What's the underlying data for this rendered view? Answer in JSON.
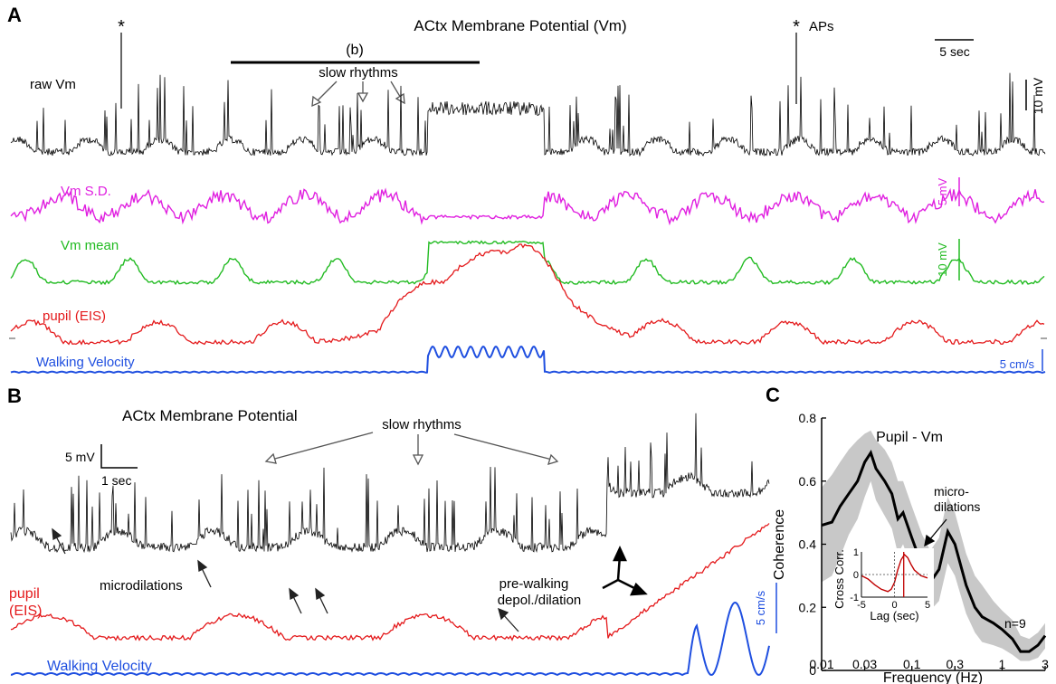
{
  "panels": {
    "a": {
      "letter": "A",
      "title": "ACtx Membrane Potential (Vm)",
      "bracket_label": "(b)",
      "slow_label": "slow rhythms",
      "ap_label": "APs",
      "ap_marker": "*",
      "trace_labels": {
        "raw": "raw Vm",
        "sd": "Vm S.D.",
        "mean": "Vm mean",
        "pupil": "pupil (EIS)",
        "walk": "Walking Velocity"
      },
      "scale_labels": {
        "time": "5 sec",
        "raw": "10 mV",
        "sd": "5 mV",
        "mean": "10 mV",
        "walk": "5 cm/s"
      }
    },
    "b": {
      "letter": "B",
      "title": "ACtx Membrane Potential",
      "slow_label": "slow rhythms",
      "micro_label": "microdilations",
      "pupil_label": [
        "pupil",
        "(EIS)"
      ],
      "walk_label": "Walking Velocity",
      "prewalk_label": [
        "pre-walking",
        "depol./dilation"
      ],
      "scale_labels": {
        "mv": "5 mV",
        "sec": "1 sec",
        "walk": "5 cm/s"
      }
    },
    "c": {
      "letter": "C"
    }
  },
  "colors": {
    "raw": "#000000",
    "sd": "#e020e0",
    "mean": "#22bb22",
    "pupil": "#e41a1c",
    "walk": "#1f4fe0",
    "band": "#c8c8c8"
  },
  "chart_data": {
    "type": "line",
    "title": "Pupil - Vm",
    "xlabel": "Frequency (Hz)",
    "ylabel": "Coherence",
    "x_scale": "log",
    "xlim": [
      0.01,
      3
    ],
    "ylim": [
      0,
      0.8
    ],
    "xticks": [
      0.01,
      0.03,
      0.1,
      0.3,
      1,
      3
    ],
    "xtick_labels": [
      "0.01",
      "0.03",
      "0.1",
      "0.3",
      "1",
      "3"
    ],
    "yticks": [
      0,
      0.2,
      0.4,
      0.6,
      0.8
    ],
    "ytick_labels": [
      "0",
      "0.2",
      "0.4",
      "0.6",
      "0.8"
    ],
    "annotation": [
      "micro-",
      "dilations"
    ],
    "n_label": "n=9",
    "series": [
      {
        "x": [
          0.01,
          0.013,
          0.016,
          0.02,
          0.025,
          0.03,
          0.035,
          0.04,
          0.05,
          0.06,
          0.07,
          0.08,
          0.1,
          0.13,
          0.16,
          0.2,
          0.25,
          0.3,
          0.4,
          0.5,
          0.6,
          0.8,
          1.0,
          1.3,
          1.6,
          2.0,
          2.5,
          3.0
        ],
        "values": [
          0.46,
          0.47,
          0.52,
          0.56,
          0.6,
          0.66,
          0.69,
          0.64,
          0.6,
          0.56,
          0.48,
          0.5,
          0.42,
          0.33,
          0.28,
          0.32,
          0.44,
          0.4,
          0.27,
          0.2,
          0.17,
          0.15,
          0.13,
          0.1,
          0.06,
          0.06,
          0.08,
          0.11
        ],
        "upper": [
          0.58,
          0.62,
          0.66,
          0.7,
          0.73,
          0.75,
          0.76,
          0.73,
          0.7,
          0.66,
          0.6,
          0.6,
          0.52,
          0.43,
          0.38,
          0.42,
          0.55,
          0.5,
          0.37,
          0.3,
          0.27,
          0.22,
          0.19,
          0.16,
          0.11,
          0.1,
          0.12,
          0.15
        ],
        "lower": [
          0.28,
          0.3,
          0.36,
          0.43,
          0.48,
          0.55,
          0.6,
          0.54,
          0.49,
          0.45,
          0.37,
          0.4,
          0.32,
          0.23,
          0.19,
          0.22,
          0.34,
          0.3,
          0.18,
          0.12,
          0.09,
          0.08,
          0.07,
          0.05,
          0.03,
          0.03,
          0.04,
          0.07
        ]
      }
    ],
    "inset": {
      "type": "line",
      "xlabel": "Lag (sec)",
      "ylabel": "Cross Corr.",
      "xlim": [
        -5,
        5
      ],
      "ylim": [
        -1,
        1
      ],
      "xticks": [
        -5,
        0,
        5
      ],
      "xtick_labels": [
        "-5",
        "0",
        "5"
      ],
      "yticks": [
        -1,
        0,
        1
      ],
      "ytick_labels": [
        "-1",
        "0",
        "1"
      ],
      "peak_lag": 1.4,
      "series": [
        {
          "x": [
            -5,
            -4,
            -3,
            -2,
            -1,
            -0.5,
            0,
            0.5,
            1,
            1.5,
            2,
            2.5,
            3,
            4,
            5
          ],
          "values": [
            -0.05,
            -0.2,
            -0.45,
            -0.65,
            -0.75,
            -0.65,
            -0.35,
            0.2,
            0.65,
            0.88,
            0.75,
            0.45,
            0.2,
            -0.05,
            -0.15
          ]
        }
      ]
    }
  }
}
